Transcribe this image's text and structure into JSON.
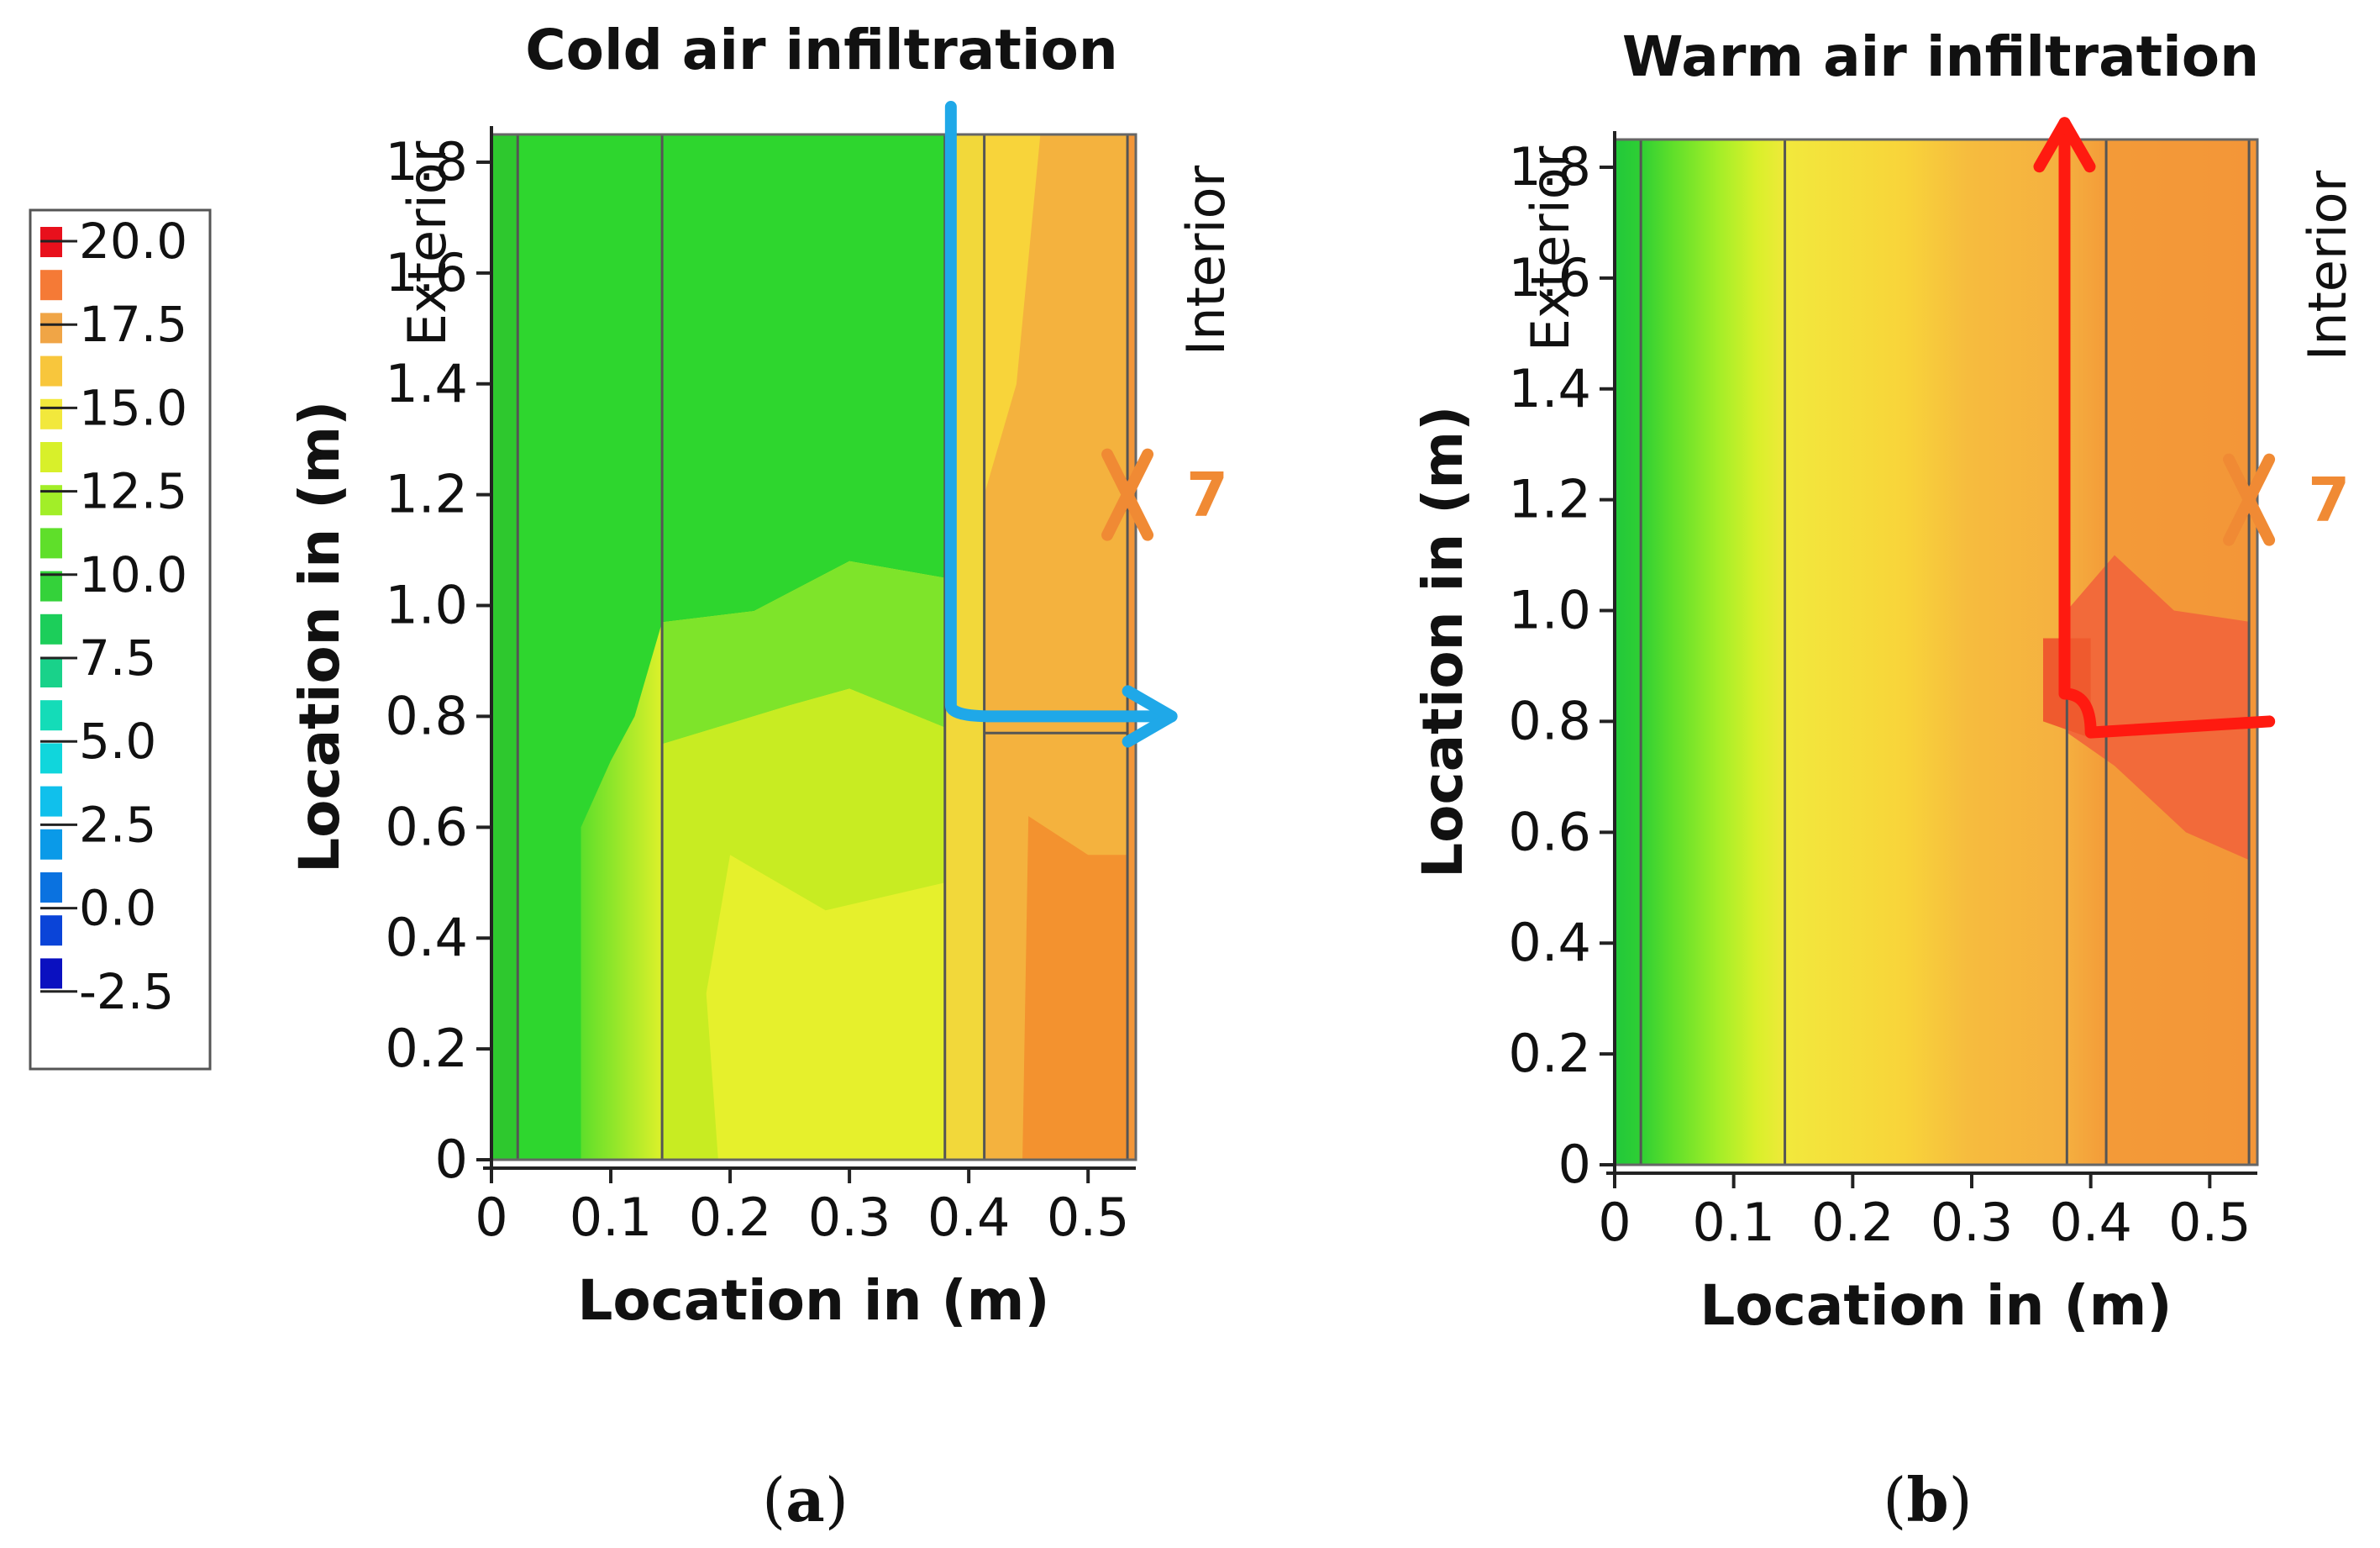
{
  "legend": {
    "labels": [
      "20.0",
      "17.5",
      "15.0",
      "12.5",
      "10.0",
      "7.5",
      "5.0",
      "2.5",
      "0.0",
      "-2.5"
    ],
    "colors": [
      "#e8101c",
      "#f57a36",
      "#f0a546",
      "#f8c63c",
      "#f2e83c",
      "#d8f02a",
      "#a2ee28",
      "#5fdf2a",
      "#34d23a",
      "#1cce5a",
      "#19d28a",
      "#14dcb8",
      "#10d6dc",
      "#10c0ec",
      "#0a9ae8",
      "#0a72e0",
      "#0a44d8",
      "#0a10c0"
    ]
  },
  "chart_data": [
    {
      "type": "heatmap",
      "panel": "a",
      "title": "Cold air infiltration",
      "xlabel": "Location in (m)",
      "ylabel": "Location in (m)",
      "exterior_label": "Exterior",
      "interior_label": "Interior",
      "xlim": [
        0,
        0.54
      ],
      "ylim": [
        0,
        1.85
      ],
      "x_ticks": [
        "0",
        "0.1",
        "0.2",
        "0.3",
        "0.4",
        "0.5"
      ],
      "y_ticks": [
        "0",
        "0.2",
        "0.4",
        "0.6",
        "0.8",
        "1.0",
        "1.2",
        "1.4",
        "1.6",
        "1.8"
      ],
      "layer_boundaries_x": [
        0.022,
        0.143,
        0.38,
        0.413,
        0.533
      ],
      "arrow": {
        "color": "#1fa8e8",
        "path": [
          [
            0.385,
            1.9
          ],
          [
            0.385,
            0.82
          ],
          [
            0.42,
            0.8
          ],
          [
            0.57,
            0.8
          ]
        ]
      },
      "marker": {
        "label": "7",
        "x": 0.533,
        "y": 1.2
      },
      "caption": "a"
    },
    {
      "type": "heatmap",
      "panel": "b",
      "title": "Warm air infiltration",
      "xlabel": "Location in (m)",
      "ylabel": "Location in (m)",
      "exterior_label": "Exterior",
      "interior_label": "Interior",
      "xlim": [
        0,
        0.54
      ],
      "ylim": [
        0,
        1.85
      ],
      "x_ticks": [
        "0",
        "0.1",
        "0.2",
        "0.3",
        "0.4",
        "0.5"
      ],
      "y_ticks": [
        "0",
        "0.2",
        "0.4",
        "0.6",
        "0.8",
        "1.0",
        "1.2",
        "1.4",
        "1.6",
        "1.8"
      ],
      "layer_boundaries_x": [
        0.022,
        0.143,
        0.38,
        0.413,
        0.533
      ],
      "arrow": {
        "color": "#ff1a10",
        "path": [
          [
            0.55,
            0.8
          ],
          [
            0.4,
            0.78
          ],
          [
            0.378,
            0.85
          ],
          [
            0.378,
            1.88
          ]
        ]
      },
      "marker": {
        "label": "7",
        "x": 0.533,
        "y": 1.2
      },
      "caption": "b"
    }
  ]
}
